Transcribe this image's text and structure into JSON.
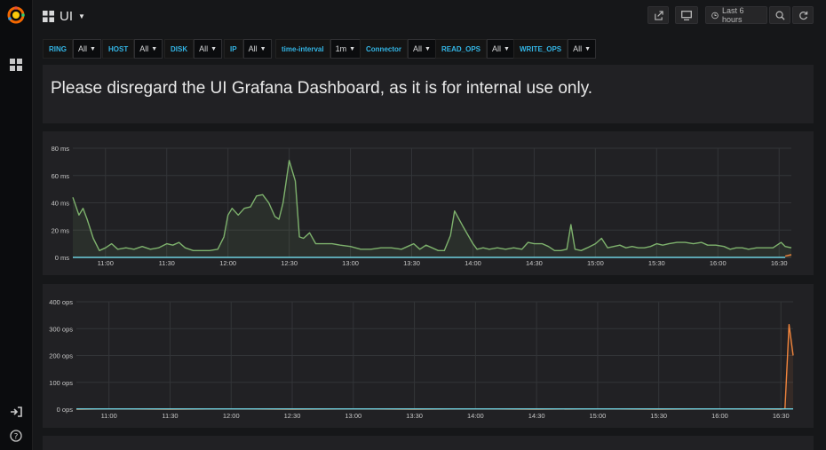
{
  "dashboard": {
    "title": "UI"
  },
  "topbar": {
    "time_range_label": "Last 6 hours",
    "icons": [
      "share-icon",
      "monitor-icon",
      "clock-icon",
      "zoom-out-icon",
      "refresh-icon"
    ]
  },
  "variables": [
    {
      "label": "RING",
      "value": "All"
    },
    {
      "label": "HOST",
      "value": "All"
    },
    {
      "label": "DISK",
      "value": "All"
    },
    {
      "label": "IP",
      "value": "All"
    },
    {
      "label": "time-interval",
      "value": "1m"
    },
    {
      "label": "Connector",
      "value": "All"
    },
    {
      "label": "READ_OPS",
      "value": "All"
    },
    {
      "label": "WRITE_OPS",
      "value": "All"
    }
  ],
  "text_panel": {
    "message": "Please disregard the UI Grafana Dashboard, as it is for internal use only."
  },
  "colors": {
    "series_green": "#7eb26d",
    "series_blue": "#6ed0e0",
    "series_orange": "#ef843c",
    "accent_blue": "#33b5e5"
  },
  "chart_data": [
    {
      "type": "line",
      "y_unit": "ms",
      "ylim": [
        0,
        80
      ],
      "yticks": [
        "0 ms",
        "20 ms",
        "40 ms",
        "60 ms",
        "80 ms"
      ],
      "xlim": [
        "10:44",
        "16:36"
      ],
      "xticks": [
        "11:00",
        "11:30",
        "12:00",
        "12:30",
        "13:00",
        "13:30",
        "14:00",
        "14:30",
        "15:00",
        "15:30",
        "16:00",
        "16:30"
      ],
      "grid": true,
      "legend": "none",
      "series": [
        {
          "color": "#7eb26d",
          "points": [
            [
              "10:44",
              44
            ],
            [
              "10:47",
              31
            ],
            [
              "10:49",
              36
            ],
            [
              "10:51",
              28
            ],
            [
              "10:54",
              14
            ],
            [
              "10:57",
              5
            ],
            [
              "11:00",
              7
            ],
            [
              "11:03",
              10
            ],
            [
              "11:06",
              6
            ],
            [
              "11:10",
              7
            ],
            [
              "11:14",
              6
            ],
            [
              "11:18",
              8
            ],
            [
              "11:22",
              6
            ],
            [
              "11:26",
              7
            ],
            [
              "11:30",
              10
            ],
            [
              "11:33",
              9
            ],
            [
              "11:36",
              11
            ],
            [
              "11:39",
              7
            ],
            [
              "11:43",
              5
            ],
            [
              "11:47",
              5
            ],
            [
              "11:51",
              5
            ],
            [
              "11:55",
              6
            ],
            [
              "11:58",
              15
            ],
            [
              "12:00",
              31
            ],
            [
              "12:02",
              36
            ],
            [
              "12:05",
              31
            ],
            [
              "12:08",
              36
            ],
            [
              "12:11",
              37
            ],
            [
              "12:14",
              45
            ],
            [
              "12:17",
              46
            ],
            [
              "12:20",
              40
            ],
            [
              "12:23",
              30
            ],
            [
              "12:25",
              28
            ],
            [
              "12:27",
              40
            ],
            [
              "12:30",
              71
            ],
            [
              "12:33",
              56
            ],
            [
              "12:35",
              15
            ],
            [
              "12:37",
              14
            ],
            [
              "12:40",
              18
            ],
            [
              "12:43",
              10
            ],
            [
              "12:47",
              10
            ],
            [
              "12:51",
              10
            ],
            [
              "12:55",
              9
            ],
            [
              "13:00",
              8
            ],
            [
              "13:05",
              6
            ],
            [
              "13:10",
              6
            ],
            [
              "13:15",
              7
            ],
            [
              "13:20",
              7
            ],
            [
              "13:25",
              6
            ],
            [
              "13:28",
              8
            ],
            [
              "13:31",
              10
            ],
            [
              "13:34",
              6
            ],
            [
              "13:37",
              9
            ],
            [
              "13:40",
              7
            ],
            [
              "13:43",
              5
            ],
            [
              "13:46",
              5
            ],
            [
              "13:49",
              16
            ],
            [
              "13:51",
              34
            ],
            [
              "13:55",
              23
            ],
            [
              "14:00",
              10
            ],
            [
              "14:02",
              6
            ],
            [
              "14:05",
              7
            ],
            [
              "14:08",
              6
            ],
            [
              "14:12",
              7
            ],
            [
              "14:16",
              6
            ],
            [
              "14:20",
              7
            ],
            [
              "14:24",
              6
            ],
            [
              "14:27",
              11
            ],
            [
              "14:30",
              10
            ],
            [
              "14:34",
              10
            ],
            [
              "14:37",
              8
            ],
            [
              "14:40",
              5
            ],
            [
              "14:43",
              5
            ],
            [
              "14:46",
              6
            ],
            [
              "14:48",
              24
            ],
            [
              "14:50",
              6
            ],
            [
              "14:53",
              5
            ],
            [
              "14:56",
              7
            ],
            [
              "15:00",
              10
            ],
            [
              "15:03",
              14
            ],
            [
              "15:06",
              7
            ],
            [
              "15:09",
              8
            ],
            [
              "15:12",
              9
            ],
            [
              "15:15",
              7
            ],
            [
              "15:18",
              8
            ],
            [
              "15:21",
              7
            ],
            [
              "15:24",
              7
            ],
            [
              "15:27",
              8
            ],
            [
              "15:30",
              10
            ],
            [
              "15:33",
              9
            ],
            [
              "15:36",
              10
            ],
            [
              "15:40",
              11
            ],
            [
              "15:44",
              11
            ],
            [
              "15:48",
              10
            ],
            [
              "15:52",
              11
            ],
            [
              "15:55",
              9
            ],
            [
              "15:59",
              9
            ],
            [
              "16:03",
              8
            ],
            [
              "16:06",
              6
            ],
            [
              "16:09",
              7
            ],
            [
              "16:12",
              7
            ],
            [
              "16:15",
              6
            ],
            [
              "16:19",
              7
            ],
            [
              "16:23",
              7
            ],
            [
              "16:27",
              7
            ],
            [
              "16:31",
              11
            ],
            [
              "16:33",
              8
            ],
            [
              "16:36",
              7
            ]
          ]
        },
        {
          "color": "#6ed0e0",
          "points": [
            [
              "10:44",
              0
            ],
            [
              "16:33",
              0
            ]
          ]
        },
        {
          "color": "#ef843c",
          "points": [
            [
              "16:33",
              1
            ],
            [
              "16:36",
              2
            ]
          ]
        }
      ]
    },
    {
      "type": "line",
      "y_unit": "ops",
      "ylim": [
        0,
        400
      ],
      "yticks": [
        "0 ops",
        "100 ops",
        "200 ops",
        "300 ops",
        "400 ops"
      ],
      "xlim": [
        "10:44",
        "16:36"
      ],
      "xticks": [
        "11:00",
        "11:30",
        "12:00",
        "12:30",
        "13:00",
        "13:30",
        "14:00",
        "14:30",
        "15:00",
        "15:30",
        "16:00",
        "16:30"
      ],
      "grid": true,
      "legend": "none",
      "series": [
        {
          "color": "#ef843c",
          "points": [
            [
              "10:44",
              0
            ],
            [
              "11:00",
              1
            ],
            [
              "11:30",
              0
            ],
            [
              "12:00",
              1
            ],
            [
              "12:30",
              0
            ],
            [
              "13:00",
              1
            ],
            [
              "13:30",
              0
            ],
            [
              "14:00",
              1
            ],
            [
              "14:30",
              0
            ],
            [
              "15:00",
              1
            ],
            [
              "15:30",
              0
            ],
            [
              "16:00",
              1
            ],
            [
              "16:30",
              0
            ],
            [
              "16:32",
              2
            ],
            [
              "16:34",
              315
            ],
            [
              "16:36",
              200
            ]
          ]
        },
        {
          "color": "#6ed0e0",
          "points": [
            [
              "10:44",
              1
            ],
            [
              "16:36",
              1
            ]
          ]
        }
      ]
    }
  ]
}
